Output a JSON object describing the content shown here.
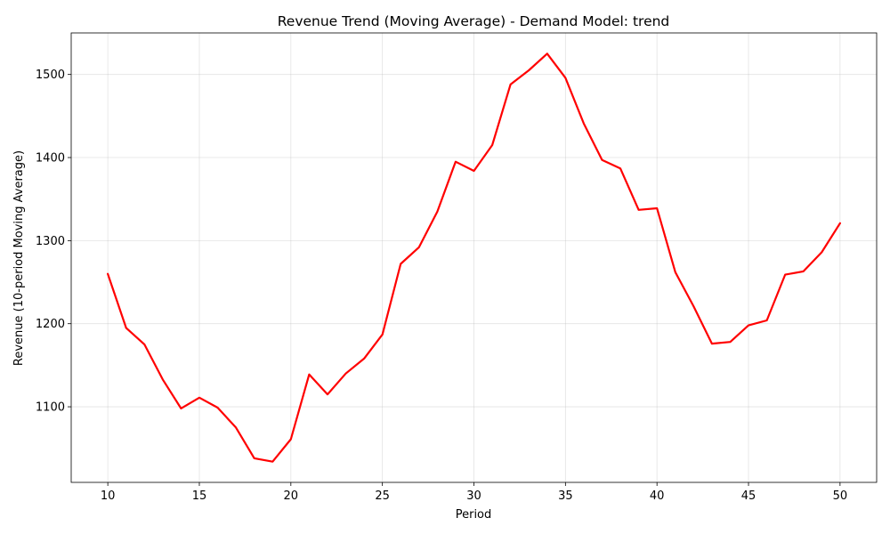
{
  "chart_data": {
    "type": "line",
    "title": "Revenue Trend (Moving Average) - Demand Model: trend",
    "xlabel": "Period",
    "ylabel": "Revenue (10-period Moving Average)",
    "xlim": [
      8,
      52
    ],
    "ylim": [
      1009,
      1550
    ],
    "xticks": [
      10,
      15,
      20,
      25,
      30,
      35,
      40,
      45,
      50
    ],
    "yticks": [
      1100,
      1200,
      1300,
      1400,
      1500
    ],
    "grid": true,
    "legend": "none",
    "colors": {
      "line": "#ff0000",
      "grid": "#b0b0b0",
      "axes": "#000000"
    },
    "x": [
      10,
      11,
      12,
      13,
      14,
      15,
      16,
      17,
      18,
      19,
      20,
      21,
      22,
      23,
      24,
      25,
      26,
      27,
      28,
      29,
      30,
      31,
      32,
      33,
      34,
      35,
      36,
      37,
      38,
      39,
      40,
      41,
      42,
      43,
      44,
      45,
      46,
      47,
      48,
      49,
      50
    ],
    "series": [
      {
        "values": [
          1260,
          1195,
          1175,
          1133,
          1098,
          1111,
          1099,
          1075,
          1038,
          1034,
          1061,
          1139,
          1115,
          1140,
          1158,
          1187,
          1272,
          1292,
          1335,
          1395,
          1384,
          1415,
          1488,
          1505,
          1525,
          1496,
          1441,
          1397,
          1387,
          1337,
          1339,
          1262,
          1221,
          1176,
          1178,
          1198,
          1204,
          1259,
          1263,
          1286,
          1321
        ]
      }
    ]
  }
}
